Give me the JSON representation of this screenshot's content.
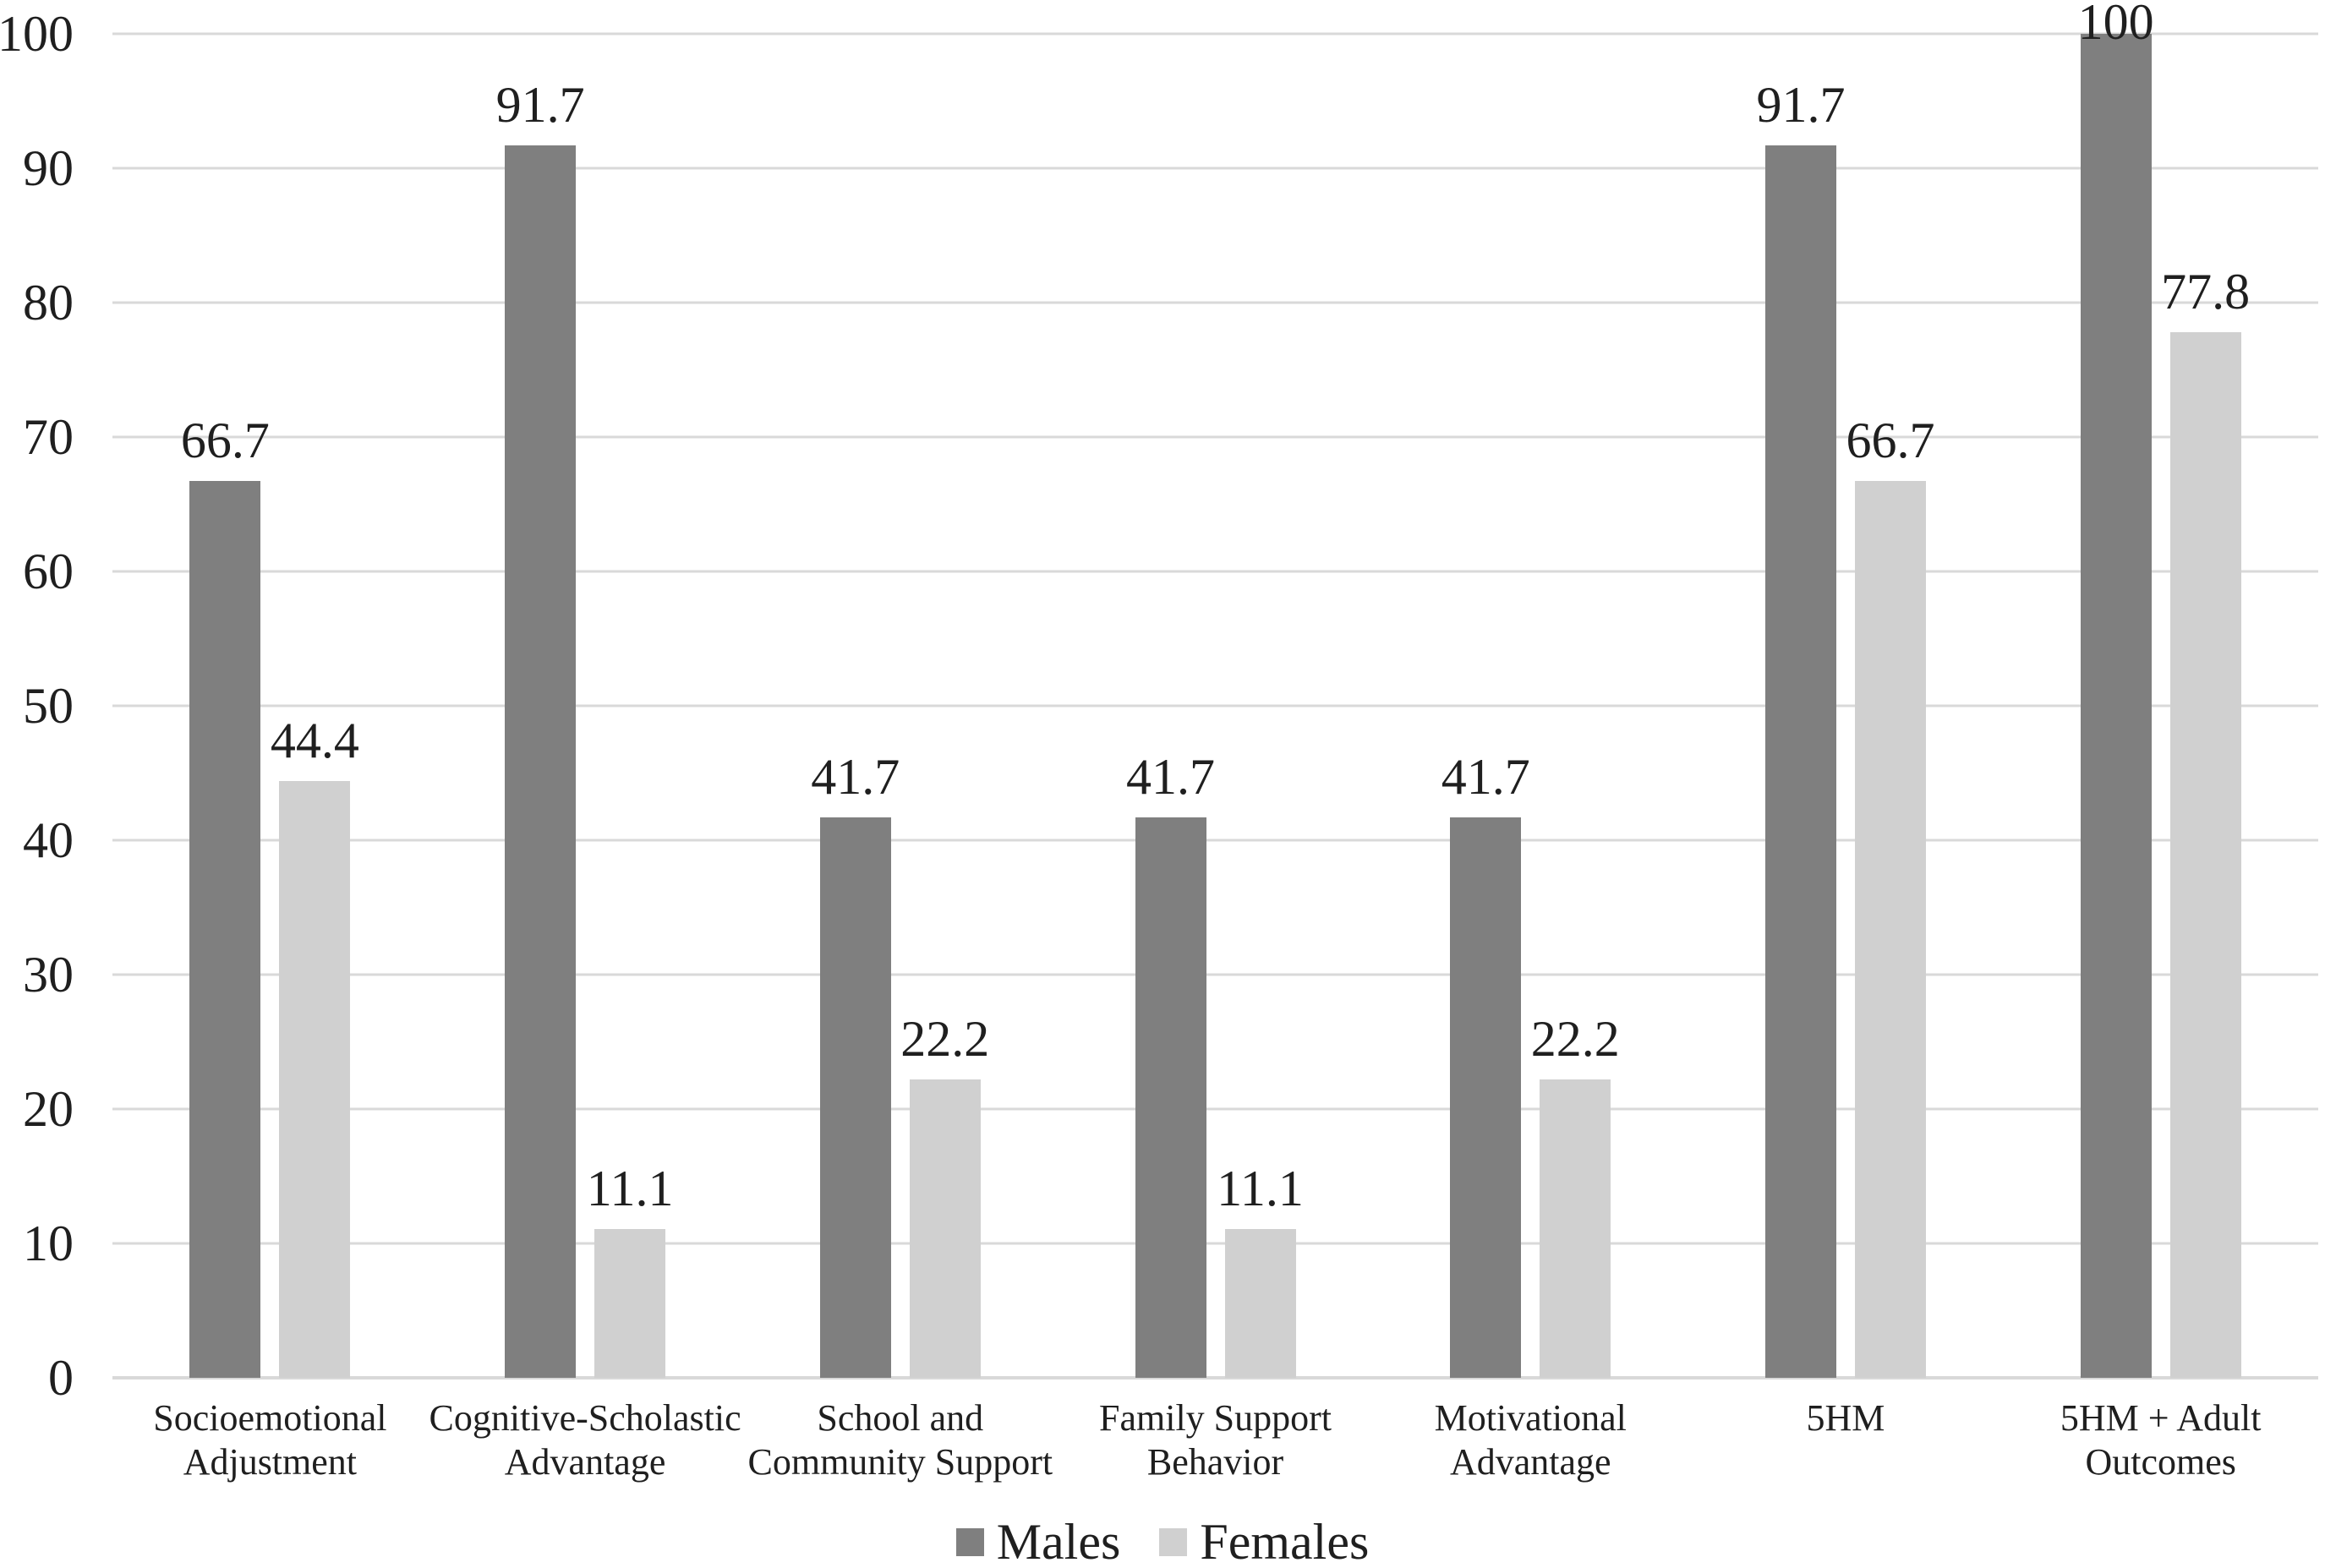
{
  "figure": {
    "background": "#ffffff"
  },
  "chart_data": {
    "type": "bar",
    "title": "",
    "xlabel": "",
    "ylabel": "",
    "categories": [
      "Socioemotional Adjustment",
      "Cognitive-Scholastic Advantage",
      "School and Community Support",
      "Family Support Behavior",
      "Motivational Advantage",
      "5HM",
      "5HM + Adult Outcomes"
    ],
    "category_display": [
      "Socioemotional\nAdjustment",
      "Cognitive-Scholastic\nAdvantage",
      "School and\nCommunity Support",
      "Family Support\nBehavior",
      "Motivational\nAdvantage",
      "5HM",
      "5HM + Adult\nOutcomes"
    ],
    "series": [
      {
        "name": "Males",
        "color": "#7f7f7f",
        "values": [
          66.7,
          91.7,
          41.7,
          41.7,
          41.7,
          91.7,
          100
        ]
      },
      {
        "name": "Females",
        "color": "#d0d0d0",
        "values": [
          44.4,
          11.1,
          22.2,
          11.1,
          22.2,
          66.7,
          77.8
        ]
      }
    ],
    "ylim": [
      0,
      100
    ],
    "yticks": [
      0,
      10,
      20,
      30,
      40,
      50,
      60,
      70,
      80,
      90,
      100
    ],
    "grid": true,
    "gridline_color": "#d9d9d9",
    "label_color": "#1f1f1f",
    "legend_position": "bottom"
  },
  "legend": {
    "items": [
      {
        "label": "Males",
        "color": "#7f7f7f"
      },
      {
        "label": "Females",
        "color": "#d0d0d0"
      }
    ]
  }
}
